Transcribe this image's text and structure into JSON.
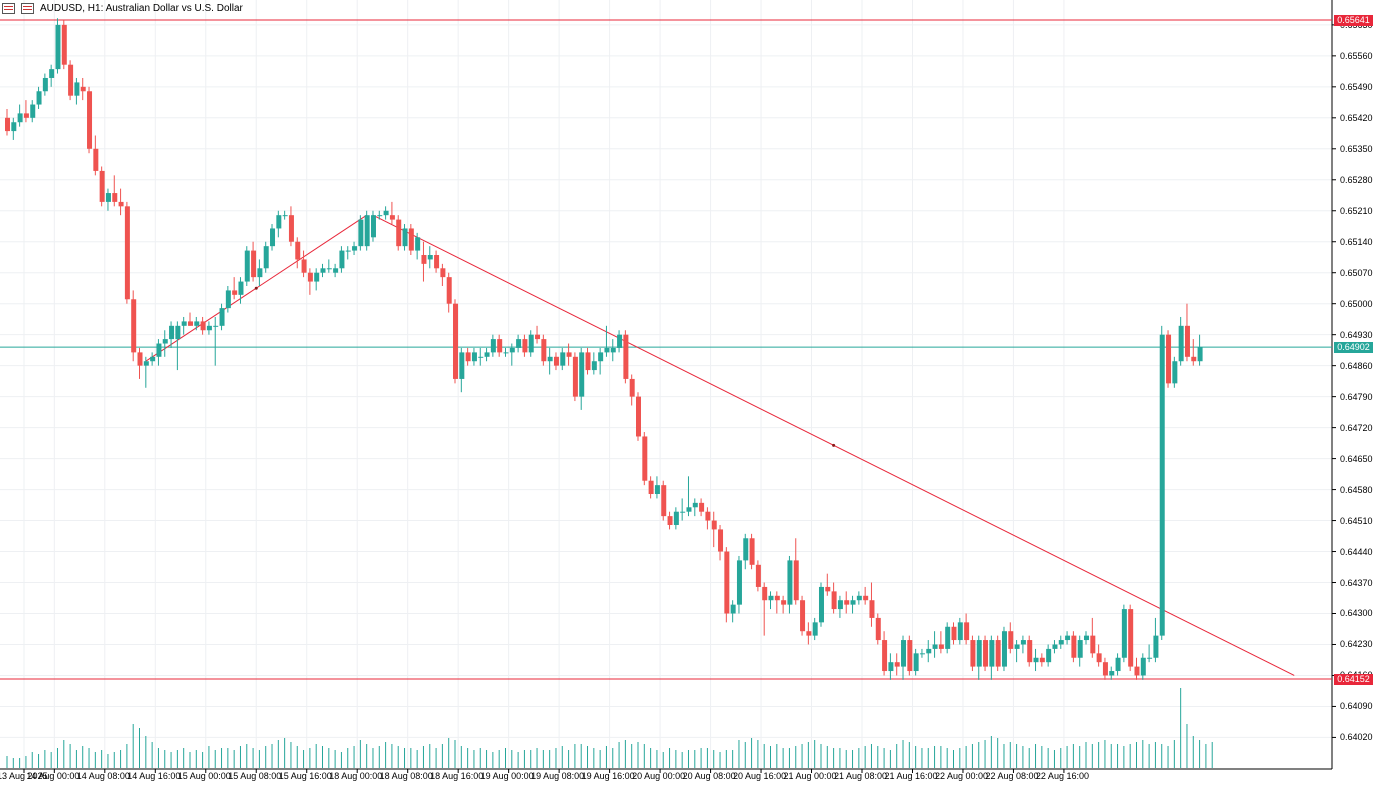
{
  "window": {
    "title": "AUDUSD, H1:  Australian Dollar vs U.S. Dollar",
    "icons": [
      "chart-menu-icon",
      "chart-properties-icon"
    ]
  },
  "colors": {
    "bull": "#26a69a",
    "bear": "#ef5350",
    "grid": "#eef0f3",
    "hline": "#e8273a",
    "current_line": "#26a69a",
    "trendline": "#e8273a",
    "volume": "#26a69a"
  },
  "price_axis": {
    "labels": [
      "0.65630",
      "0.65560",
      "0.65490",
      "0.65420",
      "0.65350",
      "0.65280",
      "0.65210",
      "0.65140",
      "0.65070",
      "0.65000",
      "0.64930",
      "0.64860",
      "0.64790",
      "0.64720",
      "0.64650",
      "0.64580",
      "0.64510",
      "0.64440",
      "0.64370",
      "0.64300",
      "0.64230",
      "0.64160",
      "0.64090",
      "0.64020"
    ]
  },
  "price_tags": {
    "high": "0.65641",
    "current": "0.64902",
    "low": "0.64152"
  },
  "time_axis": {
    "labels": [
      "13 Aug 2025",
      "14 Aug 00:00",
      "14 Aug 08:00",
      "14 Aug 16:00",
      "15 Aug 00:00",
      "15 Aug 08:00",
      "15 Aug 16:00",
      "18 Aug 00:00",
      "18 Aug 08:00",
      "18 Aug 16:00",
      "19 Aug 00:00",
      "19 Aug 08:00",
      "19 Aug 16:00",
      "20 Aug 00:00",
      "20 Aug 08:00",
      "20 Aug 16:00",
      "21 Aug 00:00",
      "21 Aug 08:00",
      "21 Aug 16:00",
      "22 Aug 00:00",
      "22 Aug 08:00",
      "22 Aug 16:00"
    ]
  },
  "chart_data": {
    "type": "candlestick",
    "symbol": "AUDUSD",
    "timeframe": "H1",
    "ylim": [
      0.6397,
      0.65645
    ],
    "horizontal_lines": [
      0.65641,
      0.64152
    ],
    "current_price": 0.64902,
    "trendlines": [
      {
        "from": [
          22,
          0.6487
        ],
        "to": [
          57,
          0.652
        ]
      },
      {
        "from": [
          58,
          0.652
        ],
        "to": [
          204,
          0.6416
        ]
      }
    ],
    "candles": [
      [
        0.6542,
        0.6544,
        0.6538,
        0.6539
      ],
      [
        0.6539,
        0.6542,
        0.6537,
        0.6541
      ],
      [
        0.6541,
        0.6545,
        0.654,
        0.6543
      ],
      [
        0.6543,
        0.6546,
        0.6541,
        0.6542
      ],
      [
        0.6542,
        0.6546,
        0.6541,
        0.6545
      ],
      [
        0.6545,
        0.6549,
        0.6544,
        0.6548
      ],
      [
        0.6548,
        0.6552,
        0.6547,
        0.6551
      ],
      [
        0.6551,
        0.6554,
        0.6549,
        0.6553
      ],
      [
        0.6553,
        0.65645,
        0.6552,
        0.6563
      ],
      [
        0.6563,
        0.65641,
        0.6553,
        0.6554
      ],
      [
        0.6554,
        0.6555,
        0.6546,
        0.6547
      ],
      [
        0.6547,
        0.6551,
        0.6545,
        0.655
      ],
      [
        0.6549,
        0.6551,
        0.6546,
        0.6548
      ],
      [
        0.6548,
        0.6549,
        0.6534,
        0.6535
      ],
      [
        0.6535,
        0.6538,
        0.6529,
        0.653
      ],
      [
        0.653,
        0.6531,
        0.6522,
        0.6523
      ],
      [
        0.6523,
        0.6526,
        0.6521,
        0.6525
      ],
      [
        0.6525,
        0.6529,
        0.6522,
        0.6523
      ],
      [
        0.6523,
        0.6526,
        0.652,
        0.6522
      ],
      [
        0.6522,
        0.6523,
        0.65,
        0.6501
      ],
      [
        0.6501,
        0.6503,
        0.6487,
        0.6489
      ],
      [
        0.6489,
        0.649,
        0.6483,
        0.6486
      ],
      [
        0.6486,
        0.6488,
        0.6481,
        0.6487
      ],
      [
        0.6487,
        0.6489,
        0.6486,
        0.6488
      ],
      [
        0.6488,
        0.6492,
        0.6486,
        0.6491
      ],
      [
        0.6491,
        0.6494,
        0.6488,
        0.6492
      ],
      [
        0.6492,
        0.6496,
        0.649,
        0.6495
      ],
      [
        0.6492,
        0.6496,
        0.6485,
        0.6495
      ],
      [
        0.6495,
        0.6497,
        0.6493,
        0.6496
      ],
      [
        0.6496,
        0.6498,
        0.6495,
        0.6495
      ],
      [
        0.6495,
        0.6497,
        0.6494,
        0.6496
      ],
      [
        0.6496,
        0.6497,
        0.6493,
        0.6494
      ],
      [
        0.6494,
        0.6496,
        0.6493,
        0.6495
      ],
      [
        0.6495,
        0.6497,
        0.6486,
        0.6495
      ],
      [
        0.6495,
        0.65,
        0.6494,
        0.6499
      ],
      [
        0.6499,
        0.6504,
        0.6498,
        0.6503
      ],
      [
        0.6503,
        0.6506,
        0.6501,
        0.6502
      ],
      [
        0.6502,
        0.6506,
        0.65,
        0.6505
      ],
      [
        0.6505,
        0.6513,
        0.6504,
        0.6512
      ],
      [
        0.6512,
        0.6514,
        0.6505,
        0.6506
      ],
      [
        0.6506,
        0.651,
        0.6504,
        0.6508
      ],
      [
        0.6508,
        0.6514,
        0.6507,
        0.6513
      ],
      [
        0.6513,
        0.6518,
        0.6512,
        0.6517
      ],
      [
        0.6517,
        0.6521,
        0.6515,
        0.652
      ],
      [
        0.652,
        0.6521,
        0.6519,
        0.652
      ],
      [
        0.652,
        0.6522,
        0.6513,
        0.6514
      ],
      [
        0.6514,
        0.6515,
        0.6508,
        0.651
      ],
      [
        0.651,
        0.6512,
        0.6506,
        0.6507
      ],
      [
        0.6507,
        0.6508,
        0.6502,
        0.6505
      ],
      [
        0.6505,
        0.6508,
        0.6503,
        0.6507
      ],
      [
        0.6507,
        0.6509,
        0.6506,
        0.6508
      ],
      [
        0.6508,
        0.651,
        0.6507,
        0.6508
      ],
      [
        0.6507,
        0.6509,
        0.6506,
        0.6508
      ],
      [
        0.6508,
        0.6513,
        0.6507,
        0.6512
      ],
      [
        0.6512,
        0.6513,
        0.651,
        0.6512
      ],
      [
        0.6512,
        0.6514,
        0.6511,
        0.6513
      ],
      [
        0.6513,
        0.652,
        0.6512,
        0.6519
      ],
      [
        0.6513,
        0.6521,
        0.6512,
        0.652
      ],
      [
        0.6515,
        0.6521,
        0.6514,
        0.652
      ],
      [
        0.652,
        0.6521,
        0.6519,
        0.652
      ],
      [
        0.652,
        0.6522,
        0.6519,
        0.6521
      ],
      [
        0.652,
        0.6523,
        0.6518,
        0.6519
      ],
      [
        0.6519,
        0.652,
        0.6512,
        0.6513
      ],
      [
        0.6513,
        0.6518,
        0.6512,
        0.6517
      ],
      [
        0.6517,
        0.6518,
        0.6511,
        0.6512
      ],
      [
        0.6512,
        0.6516,
        0.651,
        0.6515
      ],
      [
        0.6511,
        0.6514,
        0.6505,
        0.6509
      ],
      [
        0.651,
        0.6513,
        0.6508,
        0.6511
      ],
      [
        0.6511,
        0.6512,
        0.6507,
        0.6508
      ],
      [
        0.6508,
        0.6509,
        0.6504,
        0.6506
      ],
      [
        0.6506,
        0.6507,
        0.6498,
        0.65
      ],
      [
        0.65,
        0.6501,
        0.6482,
        0.6483
      ],
      [
        0.6483,
        0.649,
        0.648,
        0.6489
      ],
      [
        0.6489,
        0.649,
        0.6486,
        0.6487
      ],
      [
        0.6487,
        0.649,
        0.6486,
        0.6489
      ],
      [
        0.6488,
        0.649,
        0.6486,
        0.6488
      ],
      [
        0.6488,
        0.649,
        0.6487,
        0.6489
      ],
      [
        0.6489,
        0.6493,
        0.6488,
        0.6492
      ],
      [
        0.6492,
        0.6493,
        0.6488,
        0.6489
      ],
      [
        0.6489,
        0.649,
        0.6488,
        0.6489
      ],
      [
        0.6489,
        0.6491,
        0.6486,
        0.649
      ],
      [
        0.649,
        0.6493,
        0.6489,
        0.6492
      ],
      [
        0.6492,
        0.6493,
        0.6488,
        0.6489
      ],
      [
        0.6489,
        0.6494,
        0.6488,
        0.6493
      ],
      [
        0.6493,
        0.6495,
        0.6491,
        0.6492
      ],
      [
        0.6492,
        0.6493,
        0.6486,
        0.6487
      ],
      [
        0.6487,
        0.649,
        0.6484,
        0.6488
      ],
      [
        0.6488,
        0.6489,
        0.6485,
        0.6486
      ],
      [
        0.6486,
        0.649,
        0.6485,
        0.6489
      ],
      [
        0.6489,
        0.6491,
        0.6486,
        0.6488
      ],
      [
        0.6488,
        0.6489,
        0.6478,
        0.6479
      ],
      [
        0.6479,
        0.649,
        0.6476,
        0.6489
      ],
      [
        0.6489,
        0.649,
        0.6484,
        0.6485
      ],
      [
        0.6485,
        0.6489,
        0.6484,
        0.6487
      ],
      [
        0.6487,
        0.649,
        0.6484,
        0.6489
      ],
      [
        0.6489,
        0.6495,
        0.6488,
        0.649
      ],
      [
        0.6489,
        0.6492,
        0.6487,
        0.649
      ],
      [
        0.649,
        0.6494,
        0.6489,
        0.6493
      ],
      [
        0.6493,
        0.6494,
        0.6482,
        0.6483
      ],
      [
        0.6483,
        0.6484,
        0.6477,
        0.6479
      ],
      [
        0.6479,
        0.648,
        0.6469,
        0.647
      ],
      [
        0.647,
        0.6471,
        0.6459,
        0.646
      ],
      [
        0.646,
        0.6461,
        0.6456,
        0.6457
      ],
      [
        0.6457,
        0.6461,
        0.6456,
        0.6459
      ],
      [
        0.6459,
        0.646,
        0.6451,
        0.6452
      ],
      [
        0.6452,
        0.6453,
        0.6449,
        0.645
      ],
      [
        0.645,
        0.6454,
        0.6449,
        0.6453
      ],
      [
        0.6453,
        0.6456,
        0.6451,
        0.6453
      ],
      [
        0.6453,
        0.6461,
        0.6452,
        0.6454
      ],
      [
        0.6454,
        0.6456,
        0.6452,
        0.6455
      ],
      [
        0.6455,
        0.6456,
        0.6452,
        0.6453
      ],
      [
        0.6453,
        0.6454,
        0.6449,
        0.6451
      ],
      [
        0.6451,
        0.6453,
        0.6445,
        0.6449
      ],
      [
        0.6449,
        0.645,
        0.6442,
        0.6444
      ],
      [
        0.6444,
        0.6445,
        0.6428,
        0.643
      ],
      [
        0.643,
        0.6433,
        0.6428,
        0.6432
      ],
      [
        0.6432,
        0.6443,
        0.643,
        0.6442
      ],
      [
        0.6442,
        0.6448,
        0.644,
        0.6447
      ],
      [
        0.6447,
        0.6448,
        0.644,
        0.6441
      ],
      [
        0.6441,
        0.6442,
        0.6435,
        0.6436
      ],
      [
        0.6436,
        0.6437,
        0.6425,
        0.6433
      ],
      [
        0.6433,
        0.6435,
        0.6431,
        0.6434
      ],
      [
        0.6434,
        0.6435,
        0.643,
        0.6433
      ],
      [
        0.6433,
        0.6434,
        0.643,
        0.6432
      ],
      [
        0.6432,
        0.6443,
        0.643,
        0.6442
      ],
      [
        0.6442,
        0.6447,
        0.6432,
        0.6433
      ],
      [
        0.6433,
        0.6434,
        0.6425,
        0.6426
      ],
      [
        0.6426,
        0.6428,
        0.6423,
        0.6425
      ],
      [
        0.6425,
        0.6429,
        0.6424,
        0.6428
      ],
      [
        0.6428,
        0.6437,
        0.6427,
        0.6436
      ],
      [
        0.6436,
        0.6439,
        0.6434,
        0.6435
      ],
      [
        0.6435,
        0.6437,
        0.643,
        0.6431
      ],
      [
        0.6431,
        0.6434,
        0.6429,
        0.6433
      ],
      [
        0.6433,
        0.6435,
        0.643,
        0.6432
      ],
      [
        0.6432,
        0.6434,
        0.643,
        0.6433
      ],
      [
        0.6433,
        0.6435,
        0.6432,
        0.6434
      ],
      [
        0.6434,
        0.6436,
        0.6432,
        0.6433
      ],
      [
        0.6433,
        0.6437,
        0.6427,
        0.6429
      ],
      [
        0.6429,
        0.643,
        0.6423,
        0.6424
      ],
      [
        0.6424,
        0.6426,
        0.6416,
        0.6417
      ],
      [
        0.6417,
        0.6421,
        0.6415,
        0.6419
      ],
      [
        0.6419,
        0.6421,
        0.6416,
        0.6418
      ],
      [
        0.6418,
        0.6425,
        0.6415,
        0.6424
      ],
      [
        0.6424,
        0.6425,
        0.6416,
        0.6417
      ],
      [
        0.6417,
        0.6422,
        0.6416,
        0.6421
      ],
      [
        0.6421,
        0.6422,
        0.642,
        0.6421
      ],
      [
        0.6421,
        0.6424,
        0.6419,
        0.6422
      ],
      [
        0.6422,
        0.6426,
        0.642,
        0.6423
      ],
      [
        0.6423,
        0.6426,
        0.6421,
        0.6422
      ],
      [
        0.6422,
        0.6428,
        0.6421,
        0.6427
      ],
      [
        0.6427,
        0.6428,
        0.6423,
        0.6424
      ],
      [
        0.6424,
        0.6429,
        0.6423,
        0.6428
      ],
      [
        0.6428,
        0.643,
        0.6423,
        0.6424
      ],
      [
        0.6424,
        0.6425,
        0.6417,
        0.6418
      ],
      [
        0.6418,
        0.6425,
        0.6415,
        0.6424
      ],
      [
        0.6424,
        0.6425,
        0.6417,
        0.6418
      ],
      [
        0.6418,
        0.6425,
        0.6415,
        0.6424
      ],
      [
        0.6424,
        0.6425,
        0.6417,
        0.6418
      ],
      [
        0.6418,
        0.6427,
        0.6417,
        0.6426
      ],
      [
        0.6426,
        0.6428,
        0.6421,
        0.6422
      ],
      [
        0.6422,
        0.6424,
        0.6419,
        0.6423
      ],
      [
        0.6423,
        0.6425,
        0.6421,
        0.6424
      ],
      [
        0.6424,
        0.6425,
        0.6418,
        0.6419
      ],
      [
        0.6419,
        0.6422,
        0.6417,
        0.642
      ],
      [
        0.642,
        0.6421,
        0.6418,
        0.6419
      ],
      [
        0.6419,
        0.6423,
        0.6418,
        0.6422
      ],
      [
        0.6422,
        0.6424,
        0.6421,
        0.6423
      ],
      [
        0.6423,
        0.6425,
        0.6422,
        0.6424
      ],
      [
        0.6424,
        0.6426,
        0.6423,
        0.6425
      ],
      [
        0.6425,
        0.6426,
        0.6419,
        0.642
      ],
      [
        0.642,
        0.6425,
        0.6418,
        0.6424
      ],
      [
        0.6424,
        0.6426,
        0.6423,
        0.6425
      ],
      [
        0.6425,
        0.6429,
        0.642,
        0.6421
      ],
      [
        0.6421,
        0.6423,
        0.6418,
        0.6419
      ],
      [
        0.6419,
        0.642,
        0.6415,
        0.6416
      ],
      [
        0.6416,
        0.6418,
        0.6415,
        0.6417
      ],
      [
        0.6417,
        0.6421,
        0.6416,
        0.642
      ],
      [
        0.642,
        0.6432,
        0.6419,
        0.6431
      ],
      [
        0.6431,
        0.6432,
        0.6417,
        0.6418
      ],
      [
        0.6418,
        0.642,
        0.6415,
        0.6416
      ],
      [
        0.6416,
        0.6421,
        0.6415,
        0.642
      ],
      [
        0.642,
        0.6423,
        0.6419,
        0.642
      ],
      [
        0.642,
        0.6429,
        0.6419,
        0.6425
      ],
      [
        0.6425,
        0.6495,
        0.6424,
        0.6493
      ],
      [
        0.6493,
        0.6494,
        0.6481,
        0.6482
      ],
      [
        0.6482,
        0.6488,
        0.6481,
        0.6487
      ],
      [
        0.6487,
        0.6497,
        0.6486,
        0.6495
      ],
      [
        0.6495,
        0.65,
        0.6487,
        0.6488
      ],
      [
        0.6488,
        0.6492,
        0.6486,
        0.6487
      ],
      [
        0.6487,
        0.6493,
        0.6486,
        0.64902
      ]
    ],
    "volumes": [
      6,
      5,
      5,
      6,
      8,
      7,
      9,
      8,
      10,
      14,
      12,
      9,
      11,
      10,
      8,
      9,
      7,
      8,
      9,
      12,
      22,
      20,
      16,
      13,
      10,
      9,
      8,
      9,
      10,
      8,
      9,
      8,
      11,
      9,
      10,
      10,
      9,
      11,
      12,
      10,
      9,
      11,
      12,
      14,
      15,
      13,
      11,
      9,
      10,
      12,
      11,
      10,
      9,
      8,
      10,
      11,
      14,
      12,
      10,
      11,
      13,
      12,
      11,
      10,
      10,
      9,
      11,
      12,
      10,
      12,
      15,
      14,
      11,
      10,
      9,
      10,
      9,
      8,
      9,
      10,
      9,
      8,
      9,
      9,
      10,
      9,
      9,
      10,
      11,
      9,
      12,
      12,
      11,
      10,
      9,
      11,
      10,
      13,
      14,
      12,
      13,
      12,
      10,
      9,
      8,
      10,
      9,
      8,
      9,
      9,
      10,
      10,
      9,
      8,
      9,
      9,
      14,
      13,
      15,
      14,
      12,
      11,
      12,
      10,
      10,
      11,
      12,
      13,
      14,
      12,
      11,
      10,
      10,
      9,
      9,
      10,
      11,
      12,
      11,
      10,
      9,
      12,
      14,
      13,
      11,
      10,
      10,
      11,
      11,
      10,
      9,
      10,
      11,
      12,
      13,
      14,
      16,
      15,
      12,
      13,
      12,
      11,
      10,
      12,
      11,
      10,
      9,
      10,
      11,
      12,
      11,
      13,
      12,
      13,
      14,
      12,
      12,
      11,
      12,
      13,
      14,
      12,
      13,
      12,
      11,
      14,
      40,
      22,
      16,
      14,
      12,
      13
    ]
  }
}
